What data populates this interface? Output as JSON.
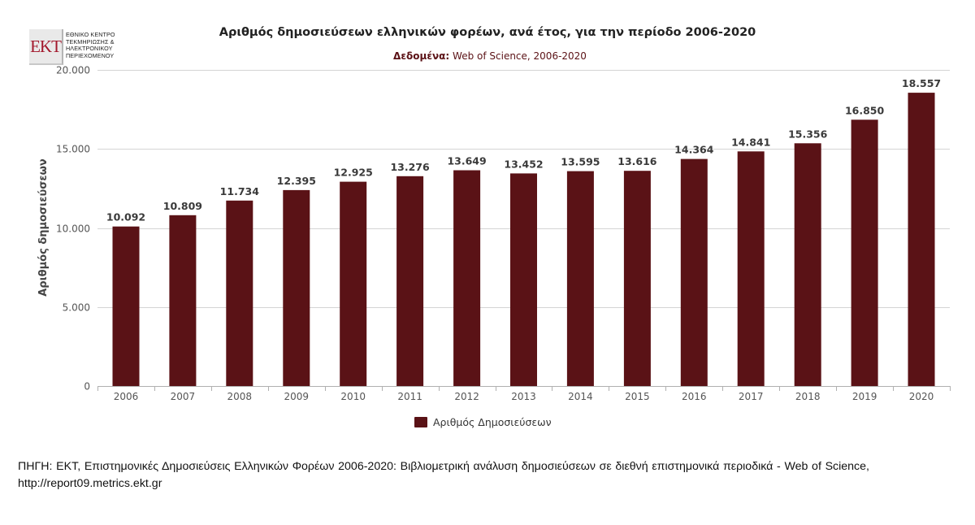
{
  "logo": {
    "mark": "EKT",
    "lines": [
      "ΕΘΝΙΚΟ ΚΕΝΤΡΟ",
      "ΤΕΚΜΗΡΙΩΣΗΣ &",
      "ΗΛΕΚΤΡΟΝΙΚΟΥ",
      "ΠΕΡΙΕΧΟΜΕΝΟΥ"
    ]
  },
  "chart_data": {
    "type": "bar",
    "title": "Αριθμός δημοσιεύσεων ελληνικών φορέων, ανά έτος, για την περίοδο 2006-2020",
    "subtitle_label": "Δεδομένα:",
    "subtitle_text": " Web of Science, 2006-2020",
    "ylabel": "Αριθμός δημοσιεύσεων",
    "xlabel": "",
    "categories": [
      "2006",
      "2007",
      "2008",
      "2009",
      "2010",
      "2011",
      "2012",
      "2013",
      "2014",
      "2015",
      "2016",
      "2017",
      "2018",
      "2019",
      "2020"
    ],
    "series": [
      {
        "name": "Αριθμός Δημοσιεύσεων",
        "color": "#5a1216",
        "values": [
          10092,
          10809,
          11734,
          12395,
          12925,
          13276,
          13649,
          13452,
          13595,
          13616,
          14364,
          14841,
          15356,
          16850,
          18557
        ],
        "labels": [
          "10.092",
          "10.809",
          "11.734",
          "12.395",
          "12.925",
          "13.276",
          "13.649",
          "13.452",
          "13.595",
          "13.616",
          "14.364",
          "14.841",
          "15.356",
          "16.850",
          "18.557"
        ]
      }
    ],
    "ylim": [
      0,
      20000
    ],
    "yticks": [
      0,
      5000,
      10000,
      15000,
      20000
    ],
    "ytick_labels": [
      "0",
      "5.000",
      "10.000",
      "15.000",
      "20.000"
    ],
    "grid": true,
    "legend": "bottom-center",
    "colors": {
      "bar": "#5a1216",
      "grid": "#d4d4d4",
      "axis": "#b0b0b0",
      "subtitle": "#5b1216"
    }
  },
  "source_note": "ΠΗΓΗ: ΕΚΤ, Επιστημονικές Δημοσιεύσεις Ελληνικών Φορέων 2006-2020: Βιβλιομετρική ανάλυση δημοσιεύσεων σε διεθνή επιστημονικά περιοδικά - Web of Science, http://report09.metrics.ekt.gr"
}
